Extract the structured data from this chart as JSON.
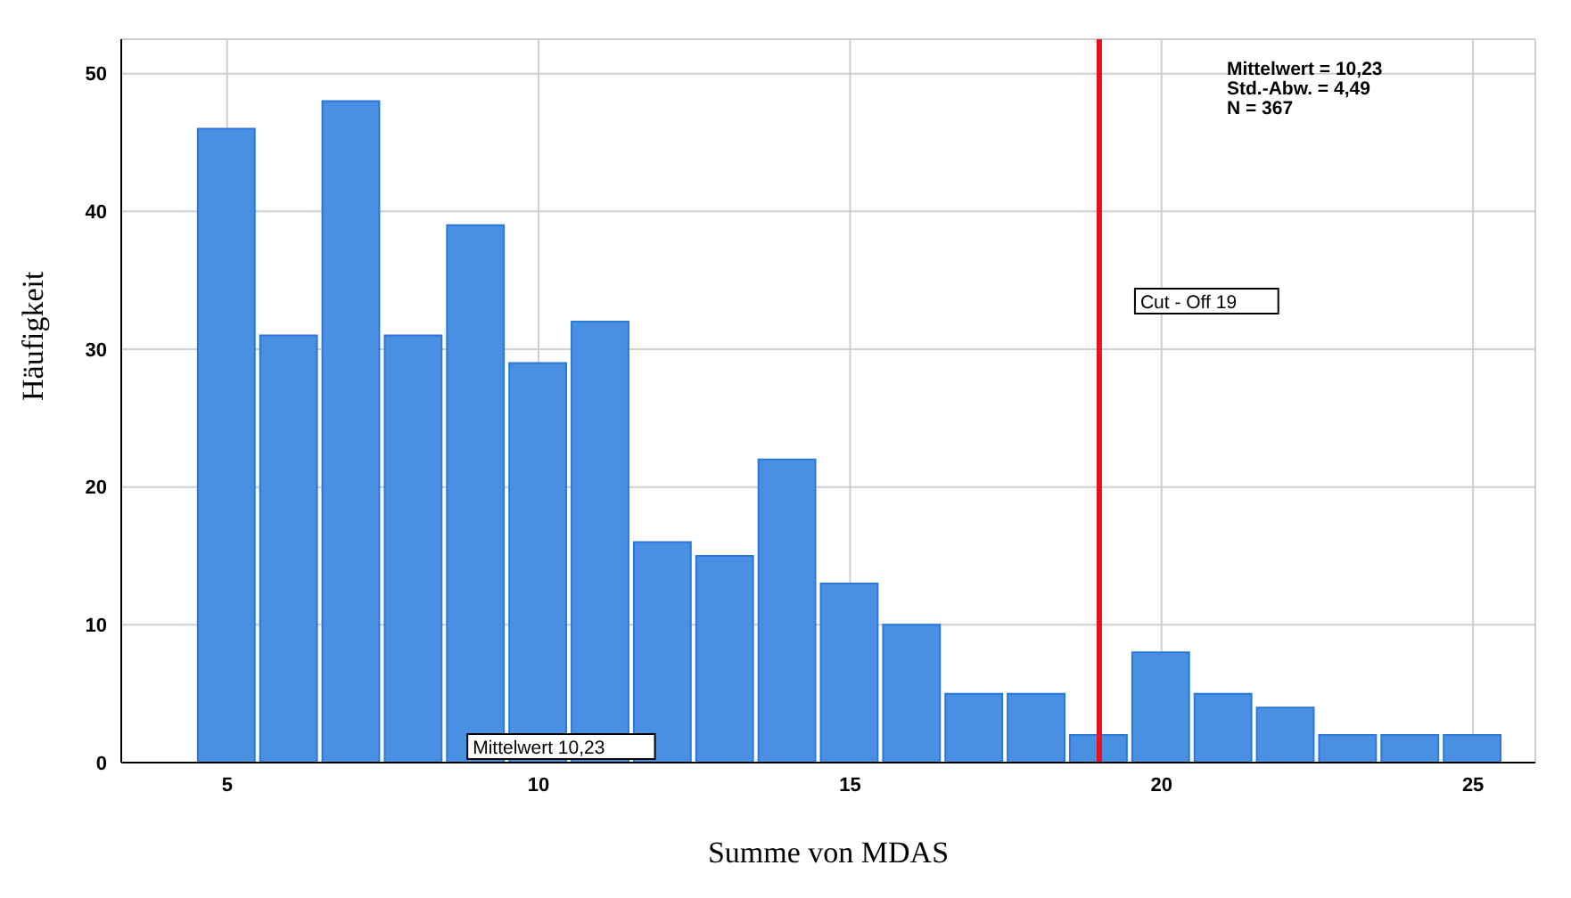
{
  "chart_data": {
    "type": "histogram",
    "xlabel": "Summe von MDAS",
    "ylabel": "Häufigkeit",
    "bins": [
      4.5,
      5.5,
      6.5,
      7.5,
      8.5,
      9.5,
      10.5,
      11.5,
      12.5,
      13.5,
      14.5,
      15.5,
      16.5,
      17.5,
      18.5,
      19.5,
      20.5,
      21.5,
      22.5,
      23.5,
      24.5,
      25.5
    ],
    "values": [
      46,
      31,
      48,
      31,
      39,
      29,
      32,
      16,
      15,
      22,
      13,
      10,
      5,
      5,
      2,
      8,
      5,
      4,
      2,
      2,
      2
    ],
    "color": "#4a90e2",
    "xlim": [
      3.3,
      26
    ],
    "xticks": [
      5,
      10,
      15,
      20,
      25
    ],
    "ylim": [
      0,
      52.5
    ],
    "yticks": [
      0,
      10,
      20,
      30,
      40,
      50
    ],
    "grid": true,
    "ref_lines": [
      {
        "axis": "x",
        "value": 19,
        "label": "Cut - Off 19",
        "color": "#e8101a"
      }
    ],
    "annotations": [
      "Mittelwert = 10,23",
      "Std.-Abw. = 4,49",
      "N = 367",
      {
        "text": "Mittelwert 10,23",
        "x": 10.23,
        "y": 0
      }
    ]
  }
}
